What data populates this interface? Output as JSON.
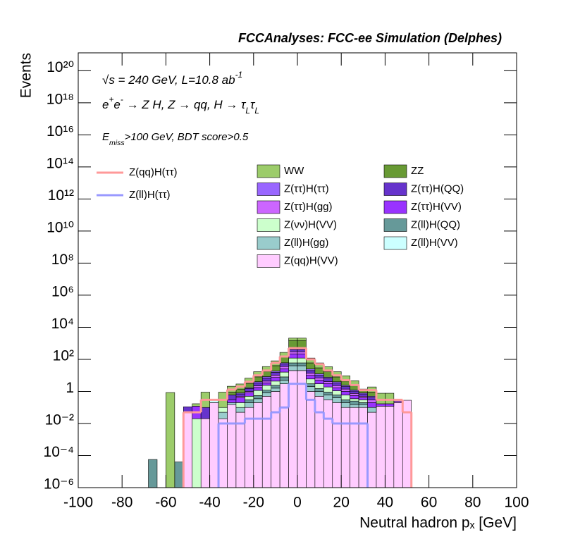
{
  "chart_data": {
    "type": "stacked-histogram",
    "title": "FCCAnalyses: FCC-ee Simulation (Delphes)",
    "annotations": [
      [
        {
          "text": "√s = 240 GeV, L=10.8 ab"
        },
        {
          "text": "-1",
          "baseline": "sup"
        }
      ],
      [
        {
          "text": "e"
        },
        {
          "text": "+",
          "baseline": "sup"
        },
        {
          "text": "e"
        },
        {
          "text": "-",
          "baseline": "sup"
        },
        {
          "text": " → Z H, Z  → qq, H  → τ"
        },
        {
          "text": "L",
          "baseline": "sub"
        },
        {
          "text": "τ"
        },
        {
          "text": "L",
          "baseline": "sub"
        }
      ],
      [
        {
          "text": "E"
        },
        {
          "text": "miss",
          "baseline": "sub"
        },
        {
          "text": ">100 GeV, BDT score>0.5"
        }
      ]
    ],
    "xlabel": "Neutral hadron pₓ [GeV]",
    "ylabel": "Events",
    "log_y": true,
    "xlim": [
      -100,
      100
    ],
    "xticks": [
      -100,
      -80,
      -60,
      -40,
      -20,
      0,
      20,
      40,
      60,
      80,
      100
    ],
    "ylim": [
      1e-06,
      1.3e+21
    ],
    "yticks": [
      {
        "value": 1e-06,
        "label": "10⁻⁶"
      },
      {
        "value": 0.0001,
        "label": "10⁻⁴"
      },
      {
        "value": 0.01,
        "label": "10⁻²"
      },
      1,
      {
        "value": 100,
        "label": "10²"
      },
      {
        "value": 10000.0,
        "label": "10⁴"
      },
      {
        "value": 1000000.0,
        "label": "10⁶"
      },
      {
        "value": 100000000.0,
        "label": "10⁸"
      },
      {
        "value": 10000000000.0,
        "label": "10¹⁰"
      },
      {
        "value": 1000000000000.0,
        "label": "10¹²"
      },
      {
        "value": 100000000000000.0,
        "label": "10¹⁴"
      },
      {
        "value": 1e+16,
        "label": "10¹⁶"
      },
      {
        "value": 1e+18,
        "label": "10¹⁸"
      },
      {
        "value": 1e+20,
        "label": "10²⁰"
      }
    ],
    "bins": [
      -68,
      -64,
      -60,
      -56,
      -52,
      -48,
      -44,
      -40,
      -36,
      -32,
      -28,
      -24,
      -20,
      -16,
      -12,
      -8,
      -4,
      0,
      4,
      8,
      12,
      16,
      20,
      24,
      28,
      32,
      36,
      40,
      44,
      48,
      52
    ],
    "series": [
      {
        "name": "WW",
        "color": "#9ccc6a",
        "values": [
          0,
          0,
          0.85,
          0,
          0,
          0.05,
          0.8,
          0,
          0.8,
          1.2,
          1.5,
          3.5,
          9,
          18,
          40,
          120,
          600,
          600,
          60,
          30,
          18,
          9,
          5,
          2.4,
          0,
          1,
          0.6,
          0.6,
          0,
          0
        ]
      },
      {
        "name": "ZZ",
        "color": "#689a34",
        "values": [
          0,
          0,
          0,
          0,
          0,
          0,
          0,
          0,
          0,
          0.3,
          0.6,
          1.5,
          4,
          9,
          22,
          90,
          1000,
          1000,
          35,
          17,
          9,
          4,
          2,
          1,
          0.6,
          0.4,
          0,
          0,
          0,
          0
        ]
      },
      {
        "name": "Z(ττ)H(ττ)",
        "color": "#9966ff",
        "values": [
          0,
          0,
          0,
          0,
          0,
          0,
          0,
          0,
          0,
          0,
          0.1,
          0.2,
          0.6,
          1.5,
          3,
          10,
          80,
          80,
          5,
          2.5,
          1.5,
          0.7,
          0.4,
          0.2,
          0.1,
          0.1,
          0,
          0,
          0,
          0
        ]
      },
      {
        "name": "Z(ττ)H(QQ)",
        "color": "#6633cc",
        "values": [
          0,
          0,
          0,
          0,
          0.06,
          0,
          0.08,
          0,
          0,
          0.3,
          0.2,
          0.5,
          1.2,
          2.5,
          5,
          15,
          120,
          120,
          6,
          3,
          2,
          1,
          0.6,
          0.3,
          0.2,
          0.1,
          0,
          0,
          0,
          0
        ]
      },
      {
        "name": "Z(ττ)H(gg)",
        "color": "#cc66ff",
        "values": [
          0,
          0,
          0,
          0,
          0,
          0,
          0,
          0,
          0,
          0,
          0.1,
          0.2,
          0.5,
          1,
          3,
          10,
          80,
          80,
          4,
          2,
          1,
          0.6,
          0.4,
          0.2,
          0.1,
          0.1,
          0,
          0,
          0.05,
          0
        ]
      },
      {
        "name": "Z(ττ)H(VV)",
        "color": "#9933ff",
        "values": [
          0,
          0,
          0,
          0,
          0,
          0.1,
          0,
          0,
          0,
          0.1,
          0.2,
          0.3,
          0.6,
          1,
          3,
          10,
          100,
          100,
          4,
          2,
          1.2,
          0.6,
          0.4,
          0.2,
          0.1,
          0.1,
          0.05,
          0.05,
          0,
          0
        ]
      },
      {
        "name": "Z(νν)H(VV)",
        "color": "#ccffcc",
        "values": [
          0,
          0,
          0,
          0,
          0,
          0.02,
          0,
          0,
          0.05,
          0,
          0.1,
          0.2,
          0.6,
          1.2,
          2,
          8,
          60,
          60,
          3,
          1.5,
          1,
          0.5,
          0.3,
          0.1,
          0.1,
          0,
          0,
          0,
          0,
          0
        ]
      },
      {
        "name": "Z(ll)H(QQ)",
        "color": "#669999",
        "values": [
          5.7e-05,
          0,
          0,
          4e-05,
          0,
          0,
          0,
          0,
          0,
          0,
          0,
          0.1,
          0.2,
          0.4,
          0.8,
          3,
          20,
          20,
          1,
          0.5,
          0.3,
          0.2,
          0.1,
          0.1,
          0.05,
          0,
          0,
          0,
          0,
          0
        ]
      },
      {
        "name": "Z(ll)H(gg)",
        "color": "#99cccc",
        "values": [
          0,
          0,
          0,
          0,
          0,
          0,
          0,
          0,
          0.03,
          0.05,
          0.05,
          0.1,
          0.15,
          0.3,
          0.6,
          2,
          20,
          20,
          1,
          0.5,
          0.3,
          0.2,
          0.1,
          0.05,
          0.05,
          0.05,
          0,
          0,
          0,
          0
        ]
      },
      {
        "name": "Z(ll)H(VV)",
        "color": "#ccffff",
        "values": [
          0,
          0,
          0,
          0,
          0,
          0,
          0,
          0.08,
          0,
          0,
          0,
          0,
          0,
          0,
          0,
          0,
          0,
          0,
          0,
          0,
          0,
          0,
          0,
          0,
          0,
          0,
          0,
          0,
          0,
          0
        ]
      },
      {
        "name": "Z(qq)H(VV)",
        "color": "#ffccff",
        "values": [
          0,
          0,
          0,
          0,
          0.05,
          0,
          0.02,
          0.2,
          0.02,
          0.15,
          0.05,
          0.1,
          0.2,
          0.5,
          1,
          3,
          20,
          20,
          1,
          0.5,
          0.3,
          0.2,
          0.1,
          0.1,
          0.1,
          0.05,
          0.12,
          0.12,
          0.2,
          0.28
        ]
      }
    ],
    "lines": [
      {
        "name": "Z(qq)H(ττ)",
        "color": "#ff9999",
        "values": [
          0,
          0,
          0,
          0,
          0.05,
          0.05,
          0.3,
          0.3,
          0.3,
          1.3,
          2,
          4,
          10,
          20,
          60,
          150,
          500,
          500,
          100,
          50,
          20,
          10,
          5,
          2.5,
          1.2,
          1.2,
          0.3,
          0.3,
          0.3,
          0.05
        ]
      },
      {
        "name": "Z(ll)H(ττ)",
        "color": "#9999ff",
        "values": [
          0,
          0,
          0,
          0,
          0,
          0,
          0,
          0,
          0.01,
          0.01,
          0.01,
          0.02,
          0.02,
          0.02,
          0.05,
          0.1,
          3,
          3,
          0.3,
          0.05,
          0.02,
          0.01,
          0.01,
          0.01,
          0.01,
          0,
          0,
          0,
          0,
          0
        ]
      }
    ]
  }
}
